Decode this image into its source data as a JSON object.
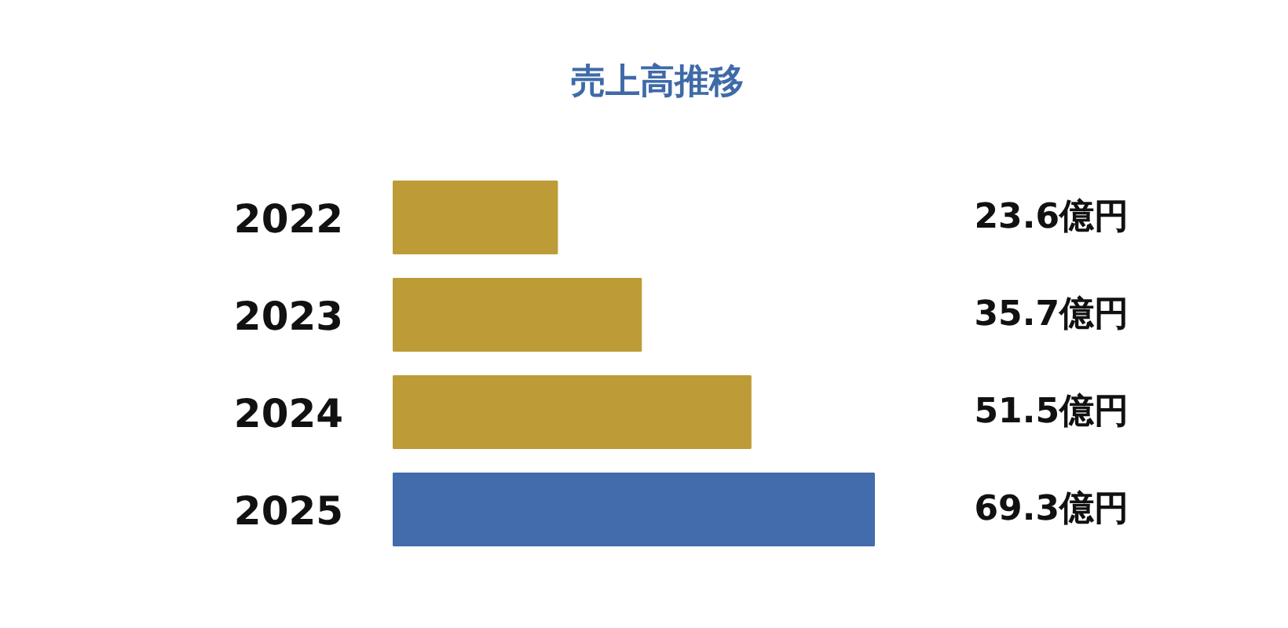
{
  "chart_data": {
    "type": "bar",
    "orientation": "horizontal",
    "title": "売上高推移",
    "categories": [
      "2022",
      "2023",
      "2024",
      "2025"
    ],
    "values": [
      23.6,
      35.7,
      51.5,
      69.3
    ],
    "colors": [
      "#bd9c37",
      "#bd9c37",
      "#bd9c37",
      "#426cab"
    ],
    "value_labels": [
      "23.6億円",
      "35.7億円",
      "51.5億円",
      "69.3億円"
    ]
  }
}
